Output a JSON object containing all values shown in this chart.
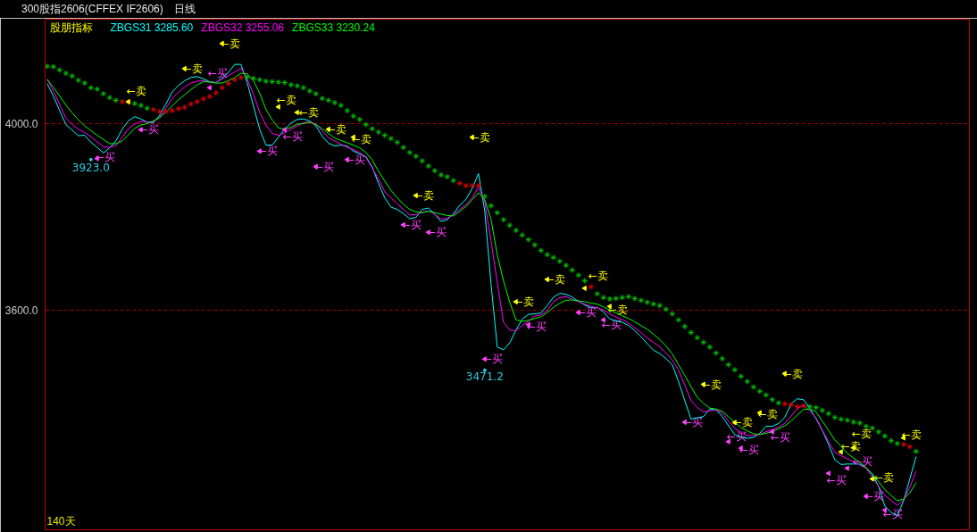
{
  "chart_data": {
    "type": "line",
    "title": "300股指2606(CFFEX IF2606)",
    "subtitle": "日线",
    "legend_title": "股朋指标",
    "grid": "y",
    "tick_labels": "y",
    "annotations": [
      "140天"
    ],
    "ylim": [
      3129,
      4224
    ],
    "yticks": [
      {
        "value": 3600,
        "label": "3600.0"
      },
      {
        "value": 4000,
        "label": "4000.0"
      }
    ],
    "categories": [
      null,
      null,
      null,
      null,
      null,
      null,
      null,
      null,
      null,
      null,
      null,
      null,
      null,
      null,
      null,
      null,
      null,
      null,
      null,
      null,
      null,
      null,
      null,
      null,
      null,
      null,
      null,
      null,
      null,
      null,
      null,
      null,
      null,
      null,
      null,
      null,
      null,
      null,
      null,
      null,
      null,
      null,
      null,
      null,
      null,
      null,
      null,
      null,
      null,
      null,
      null,
      null,
      null,
      null,
      null,
      null,
      null,
      null,
      null,
      null,
      null,
      null,
      null,
      null,
      null,
      null,
      null,
      null,
      null,
      null,
      null,
      null,
      null,
      null,
      null,
      null,
      null,
      null,
      null,
      null,
      null,
      null,
      null,
      null,
      null,
      null,
      null,
      null,
      null,
      null,
      null,
      null,
      null,
      null,
      null,
      null,
      null,
      null,
      null,
      null,
      null,
      null,
      null,
      null,
      null,
      null,
      null,
      null,
      null,
      null,
      null,
      null,
      null,
      null,
      null,
      null,
      null,
      null,
      null,
      null,
      null,
      null,
      null,
      null,
      null,
      null,
      null,
      null,
      null,
      null,
      null,
      null,
      null,
      null,
      null,
      null,
      null,
      null,
      null,
      null
    ],
    "series": [
      {
        "name": "ZBGS31 3285.60",
        "color": "#00ffff",
        "values": [
          4086,
          4059,
          4028,
          3998,
          3986,
          3974,
          3975,
          3960,
          3949,
          3937,
          3948,
          3963,
          3988,
          4006,
          4015,
          4010,
          4003,
          4002,
          4018,
          4042,
          4068,
          4082,
          4092,
          4099,
          4101,
          4096,
          4090,
          4088,
          4098,
          4110,
          4127,
          4127,
          4088,
          4038,
          3988,
          3954,
          3954,
          3971,
          3988,
          4001,
          4009,
          4010,
          4006,
          3995,
          3973,
          3958,
          3952,
          3954,
          3952,
          3941,
          3935,
          3929,
          3907,
          3872,
          3841,
          3821,
          3816,
          3807,
          3796,
          3799,
          3816,
          3819,
          3806,
          3790,
          3794,
          3807,
          3825,
          3838,
          3861,
          3893,
          3813,
          3657,
          3521,
          3515,
          3530,
          3557,
          3581,
          3591,
          3592,
          3594,
          3610,
          3628,
          3636,
          3634,
          3628,
          3619,
          3611,
          3605,
          3606,
          3596,
          3581,
          3577,
          3574,
          3567,
          3556,
          3543,
          3528,
          3514,
          3507,
          3496,
          3483,
          3447,
          3406,
          3366,
          3369,
          3372,
          3388,
          3386,
          3372,
          3352,
          3333,
          3328,
          3325,
          3327,
          3336,
          3351,
          3351,
          3357,
          3370,
          3399,
          3410,
          3408,
          3389,
          3367,
          3342,
          3312,
          3279,
          3269,
          3270,
          3270,
          3270,
          3262,
          3248,
          3222,
          3180,
          3166,
          3159,
          3191,
          3238,
          3286
        ]
      },
      {
        "name": "ZBGS32 3255.06",
        "color": "#ff00ff",
        "values": [
          4095,
          4070,
          4041,
          4012,
          3998,
          3988,
          3981,
          3972,
          3961,
          3950,
          3949,
          3953,
          3971,
          3989,
          3999,
          4005,
          4003,
          4004,
          4013,
          4033,
          4054,
          4067,
          4079,
          4087,
          4091,
          4092,
          4089,
          4088,
          4096,
          4103,
          4111,
          4119,
          4096,
          4063,
          4024,
          3997,
          3979,
          3975,
          3980,
          3988,
          3995,
          4002,
          4004,
          3999,
          3984,
          3970,
          3963,
          3956,
          3949,
          3944,
          3938,
          3927,
          3905,
          3881,
          3854,
          3841,
          3828,
          3816,
          3804,
          3805,
          3810,
          3813,
          3806,
          3795,
          3797,
          3805,
          3816,
          3826,
          3841,
          3864,
          3832,
          3749,
          3660,
          3574,
          3557,
          3556,
          3567,
          3577,
          3587,
          3590,
          3599,
          3618,
          3627,
          3629,
          3623,
          3618,
          3613,
          3608,
          3605,
          3600,
          3592,
          3585,
          3580,
          3572,
          3562,
          3552,
          3540,
          3531,
          3521,
          3508,
          3493,
          3472,
          3439,
          3406,
          3391,
          3382,
          3384,
          3386,
          3379,
          3362,
          3347,
          3337,
          3331,
          3331,
          3334,
          3339,
          3344,
          3349,
          3357,
          3373,
          3389,
          3397,
          3384,
          3369,
          3343,
          3318,
          3295,
          3288,
          3281,
          3275,
          3268,
          3261,
          3242,
          3222,
          3203,
          3192,
          3181,
          3194,
          3220,
          3255
        ]
      },
      {
        "name": "ZBGS33 3230.24",
        "color": "#00ff00",
        "values": [
          4095,
          4078,
          4059,
          4040,
          4023,
          4008,
          3995,
          3985,
          3975,
          3966,
          3957,
          3957,
          3963,
          3976,
          3990,
          3997,
          4000,
          4006,
          4013,
          4025,
          4038,
          4051,
          4062,
          4073,
          4083,
          4090,
          4089,
          4087,
          4087,
          4092,
          4099,
          4108,
          4107,
          4092,
          4065,
          4031,
          4008,
          3991,
          3988,
          3992,
          3999,
          4000,
          4003,
          3998,
          3989,
          3979,
          3969,
          3964,
          3959,
          3954,
          3948,
          3938,
          3922,
          3898,
          3877,
          3857,
          3841,
          3827,
          3816,
          3811,
          3809,
          3812,
          3809,
          3806,
          3803,
          3802,
          3812,
          3822,
          3837,
          3852,
          3837,
          3795,
          3719,
          3663,
          3617,
          3579,
          3576,
          3578,
          3582,
          3586,
          3595,
          3606,
          3615,
          3621,
          3622,
          3620,
          3618,
          3615,
          3613,
          3607,
          3600,
          3594,
          3588,
          3582,
          3575,
          3567,
          3559,
          3548,
          3537,
          3523,
          3506,
          3483,
          3460,
          3436,
          3413,
          3400,
          3390,
          3388,
          3383,
          3371,
          3360,
          3348,
          3341,
          3335,
          3333,
          3336,
          3339,
          3346,
          3352,
          3362,
          3375,
          3387,
          3388,
          3382,
          3362,
          3342,
          3322,
          3308,
          3293,
          3283,
          3274,
          3262,
          3249,
          3232,
          3215,
          3203,
          3191,
          3195,
          3208,
          3230
        ]
      },
      {
        "type": "scatter",
        "marker": "cross",
        "colors": [
          "#00c000",
          "#00c000",
          "#00c000",
          "#00c000",
          "#00c000",
          "#00c000",
          "#00c000",
          "#00c000",
          "#00c000",
          "#00c000",
          "#00c000",
          "#00c000",
          "#e00000",
          "#e00000",
          "#00c000",
          "#00c000",
          "#00c000",
          "#e00000",
          "#e00000",
          "#e00000",
          "#e00000",
          "#e00000",
          "#e00000",
          "#e00000",
          "#e00000",
          "#e00000",
          "#e00000",
          "#e00000",
          "#e00000",
          "#e00000",
          "#e00000",
          "#e00000",
          "#00c000",
          "#00c000",
          "#00c000",
          "#00c000",
          "#00c000",
          "#00c000",
          "#00c000",
          "#00c000",
          "#00c000",
          "#00c000",
          "#00c000",
          "#00c000",
          "#00c000",
          "#00c000",
          "#00c000",
          "#00c000",
          "#00c000",
          "#00c000",
          "#00c000",
          "#00c000",
          "#00c000",
          "#00c000",
          "#00c000",
          "#00c000",
          "#00c000",
          "#00c000",
          "#00c000",
          "#00c000",
          "#00c000",
          "#00c000",
          "#00c000",
          "#00c000",
          "#00c000",
          "#00c000",
          "#e00000",
          "#e00000",
          "#e00000",
          "#e00000",
          "#00c000",
          "#00c000",
          "#00c000",
          "#00c000",
          "#00c000",
          "#00c000",
          "#00c000",
          "#00c000",
          "#00c000",
          "#00c000",
          "#00c000",
          "#00c000",
          "#00c000",
          "#00c000",
          "#00c000",
          "#00c000",
          "#00c000",
          "#e00000",
          "#00c000",
          "#00c000",
          "#00c000",
          "#00c000",
          "#00c000",
          "#00c000",
          "#00c000",
          "#00c000",
          "#00c000",
          "#00c000",
          "#00c000",
          "#00c000",
          "#00c000",
          "#00c000",
          "#00c000",
          "#00c000",
          "#00c000",
          "#00c000",
          "#00c000",
          "#00c000",
          "#00c000",
          "#00c000",
          "#00c000",
          "#00c000",
          "#00c000",
          "#00c000",
          "#00c000",
          "#00c000",
          "#00c000",
          "#00c000",
          "#e00000",
          "#e00000",
          "#e00000",
          "#e00000",
          "#00c000",
          "#00c000",
          "#00c000",
          "#00c000",
          "#00c000",
          "#00c000",
          "#00c000",
          "#00c000",
          "#00c000",
          "#00c000",
          "#00c000",
          "#00c000",
          "#00c000",
          "#00c000",
          "#00c000",
          "#e00000",
          "#e00000",
          "#00c000"
        ],
        "values": [
          4123,
          4122,
          4115,
          4108,
          4102,
          4093,
          4087,
          4077,
          4074,
          4064,
          4056,
          4050,
          4047,
          4046,
          4043,
          4039,
          4033,
          4030,
          4026,
          4026,
          4028,
          4032,
          4035,
          4042,
          4047,
          4053,
          4058,
          4066,
          4077,
          4086,
          4094,
          4099,
          4100,
          4097,
          4094,
          4091,
          4090,
          4089,
          4088,
          4083,
          4081,
          4077,
          4070,
          4064,
          4054,
          4050,
          4045,
          4039,
          4028,
          4016,
          4009,
          3998,
          3989,
          3982,
          3975,
          3968,
          3960,
          3949,
          3938,
          3930,
          3920,
          3909,
          3899,
          3890,
          3886,
          3878,
          3872,
          3867,
          3867,
          3867,
          3844,
          3824,
          3809,
          3794,
          3782,
          3771,
          3761,
          3751,
          3740,
          3728,
          3719,
          3713,
          3705,
          3696,
          3686,
          3675,
          3663,
          3650,
          3635,
          3627,
          3624,
          3625,
          3627,
          3629,
          3625,
          3621,
          3617,
          3613,
          3610,
          3602,
          3592,
          3579,
          3565,
          3552,
          3541,
          3531,
          3521,
          3508,
          3496,
          3483,
          3472,
          3458,
          3447,
          3435,
          3426,
          3418,
          3408,
          3401,
          3399,
          3397,
          3393,
          3395,
          3393,
          3391,
          3385,
          3378,
          3370,
          3366,
          3364,
          3360,
          3358,
          3351,
          3347,
          3339,
          3330,
          3320,
          3314,
          3312,
          3307,
          3297
        ]
      },
      {
        "type": "scatter",
        "marker": "triangle",
        "color": "#ffff00",
        "values": [
          null,
          null,
          null,
          null,
          null,
          null,
          null,
          null,
          null,
          null,
          null,
          null,
          null,
          4047,
          null,
          null,
          null,
          null,
          null,
          null,
          null,
          null,
          4118,
          null,
          null,
          null,
          null,
          null,
          4172,
          null,
          null,
          null,
          null,
          null,
          null,
          null,
          null,
          4036,
          null,
          null,
          4024,
          null,
          null,
          null,
          null,
          3988,
          null,
          null,
          null,
          3971,
          null,
          null,
          null,
          null,
          null,
          null,
          null,
          null,
          null,
          3846,
          null,
          null,
          null,
          null,
          null,
          null,
          null,
          null,
          3971,
          null,
          null,
          null,
          null,
          null,
          null,
          3618,
          null,
          null,
          null,
          null,
          3666,
          null,
          null,
          null,
          null,
          null,
          3647,
          null,
          null,
          null,
          3608,
          null,
          null,
          null,
          null,
          null,
          null,
          null,
          null,
          null,
          null,
          null,
          null,
          null,
          null,
          3441,
          null,
          null,
          null,
          null,
          3359,
          null,
          null,
          null,
          3380,
          null,
          null,
          null,
          3464,
          null,
          null,
          null,
          null,
          null,
          null,
          null,
          null,
          3296,
          null,
          3305,
          null,
          null,
          3238,
          null,
          null,
          null,
          null,
          3326,
          null,
          null
        ],
        "value_labels": [
          null,
          null,
          null,
          null,
          null,
          null,
          null,
          null,
          null,
          null,
          null,
          null,
          null,
          "←卖",
          null,
          null,
          null,
          null,
          null,
          null,
          null,
          null,
          "←卖",
          null,
          null,
          null,
          null,
          null,
          "←卖",
          null,
          null,
          null,
          null,
          null,
          null,
          null,
          null,
          "←卖",
          null,
          null,
          "←卖",
          null,
          null,
          null,
          null,
          "←卖",
          null,
          null,
          null,
          "←卖",
          null,
          null,
          null,
          null,
          null,
          null,
          null,
          null,
          null,
          "←卖",
          null,
          null,
          null,
          null,
          null,
          null,
          null,
          null,
          "←卖",
          null,
          null,
          null,
          null,
          null,
          null,
          "←卖",
          null,
          null,
          null,
          null,
          "←卖",
          null,
          null,
          null,
          null,
          null,
          "←卖",
          null,
          null,
          null,
          "←卖",
          null,
          null,
          null,
          null,
          null,
          null,
          null,
          null,
          null,
          null,
          null,
          null,
          null,
          null,
          "←卖",
          null,
          null,
          null,
          null,
          "←卖",
          null,
          null,
          null,
          "←卖",
          null,
          null,
          null,
          "←卖",
          null,
          null,
          null,
          null,
          null,
          null,
          null,
          null,
          "←卖",
          null,
          "←卖",
          null,
          null,
          "←卖",
          null,
          null,
          null,
          null,
          "←卖",
          null,
          null
        ]
      },
      {
        "type": "scatter",
        "marker": "triangle",
        "color": "#ff40ff",
        "values": [
          null,
          null,
          null,
          null,
          null,
          null,
          null,
          null,
          3925,
          null,
          null,
          null,
          null,
          null,
          null,
          3987,
          null,
          null,
          null,
          null,
          null,
          null,
          null,
          null,
          null,
          null,
          4077,
          null,
          null,
          null,
          null,
          null,
          null,
          null,
          3941,
          null,
          null,
          null,
          3987,
          null,
          null,
          null,
          null,
          3908,
          null,
          null,
          null,
          null,
          3923,
          null,
          null,
          null,
          null,
          null,
          null,
          null,
          null,
          3783,
          null,
          null,
          null,
          3767,
          null,
          null,
          null,
          null,
          null,
          null,
          null,
          null,
          3495,
          null,
          null,
          null,
          null,
          null,
          null,
          3569,
          null,
          null,
          null,
          null,
          null,
          null,
          null,
          3595,
          null,
          null,
          null,
          3579,
          null,
          null,
          null,
          null,
          null,
          null,
          null,
          null,
          null,
          null,
          null,
          null,
          3360,
          null,
          null,
          null,
          null,
          null,
          null,
          3318,
          null,
          3304,
          null,
          null,
          null,
          null,
          3339,
          null,
          null,
          null,
          null,
          null,
          null,
          null,
          null,
          3250,
          null,
          null,
          3261,
          null,
          null,
          3201,
          null,
          null,
          3171,
          null,
          null,
          null,
          null,
          null
        ],
        "value_labels": [
          null,
          null,
          null,
          null,
          null,
          null,
          null,
          null,
          "←买",
          null,
          null,
          null,
          null,
          null,
          null,
          "←买",
          null,
          null,
          null,
          null,
          null,
          null,
          null,
          null,
          null,
          null,
          "←买",
          null,
          null,
          null,
          null,
          null,
          null,
          null,
          "←买",
          null,
          null,
          null,
          "←买",
          null,
          null,
          null,
          null,
          "←买",
          null,
          null,
          null,
          null,
          "←买",
          null,
          null,
          null,
          null,
          null,
          null,
          null,
          null,
          "←买",
          null,
          null,
          null,
          "←买",
          null,
          null,
          null,
          null,
          null,
          null,
          null,
          null,
          "←买",
          null,
          null,
          null,
          null,
          null,
          null,
          "←买",
          null,
          null,
          null,
          null,
          null,
          null,
          null,
          "←买",
          null,
          null,
          null,
          "←买",
          null,
          null,
          null,
          null,
          null,
          null,
          null,
          null,
          null,
          null,
          null,
          null,
          "←买",
          null,
          null,
          null,
          null,
          null,
          null,
          "←买",
          null,
          "←买",
          null,
          null,
          null,
          null,
          "←买",
          null,
          null,
          null,
          null,
          null,
          null,
          null,
          null,
          "←买",
          null,
          null,
          "←买",
          null,
          null,
          "←买",
          null,
          null,
          "←买",
          null,
          null,
          null,
          null,
          null
        ]
      },
      {
        "type": "scatter",
        "marker": "circle",
        "color": "#30c8e0",
        "values": [
          null,
          null,
          null,
          null,
          null,
          null,
          null,
          3923.0,
          null,
          null,
          null,
          null,
          null,
          null,
          null,
          null,
          null,
          null,
          null,
          null,
          null,
          null,
          null,
          null,
          null,
          null,
          null,
          null,
          null,
          null,
          null,
          null,
          null,
          null,
          null,
          null,
          null,
          null,
          null,
          null,
          null,
          null,
          null,
          null,
          null,
          null,
          null,
          null,
          null,
          null,
          null,
          null,
          null,
          null,
          null,
          null,
          null,
          null,
          null,
          null,
          null,
          null,
          null,
          null,
          null,
          null,
          null,
          null,
          null,
          null,
          3471.2,
          null,
          null,
          null,
          null,
          null,
          null,
          null,
          null,
          null,
          null,
          null,
          null,
          null,
          null,
          null,
          null,
          null,
          null,
          null,
          null,
          null,
          null,
          null,
          null,
          null,
          null,
          null,
          null,
          null,
          null,
          null,
          null,
          null,
          null,
          null,
          null,
          null,
          null,
          null,
          null,
          null,
          null,
          null,
          null,
          null,
          null,
          null,
          null,
          null,
          null,
          null,
          null,
          null,
          null,
          null,
          null,
          null,
          null,
          null,
          null,
          null,
          null,
          null,
          null,
          null,
          null,
          null,
          null,
          null
        ],
        "value_labels": [
          null,
          null,
          null,
          null,
          null,
          null,
          null,
          "3923.0",
          null,
          null,
          null,
          null,
          null,
          null,
          null,
          null,
          null,
          null,
          null,
          null,
          null,
          null,
          null,
          null,
          null,
          null,
          null,
          null,
          null,
          null,
          null,
          null,
          null,
          null,
          null,
          null,
          null,
          null,
          null,
          null,
          null,
          null,
          null,
          null,
          null,
          null,
          null,
          null,
          null,
          null,
          null,
          null,
          null,
          null,
          null,
          null,
          null,
          null,
          null,
          null,
          null,
          null,
          null,
          null,
          null,
          null,
          null,
          null,
          null,
          null,
          "3471.2",
          null,
          null,
          null,
          null,
          null,
          null,
          null,
          null,
          null,
          null,
          null,
          null,
          null,
          null,
          null,
          null,
          null,
          null,
          null,
          null,
          null,
          null,
          null,
          null,
          null,
          null,
          null,
          null,
          null,
          null,
          null,
          null,
          null,
          null,
          null,
          null,
          null,
          null,
          null,
          null,
          null,
          null,
          null,
          null,
          null,
          null,
          null,
          null,
          null,
          null,
          null,
          null,
          null,
          null,
          null,
          null,
          null,
          null,
          null,
          null,
          null,
          null,
          null,
          null,
          null,
          null,
          null,
          null,
          null
        ]
      }
    ]
  }
}
